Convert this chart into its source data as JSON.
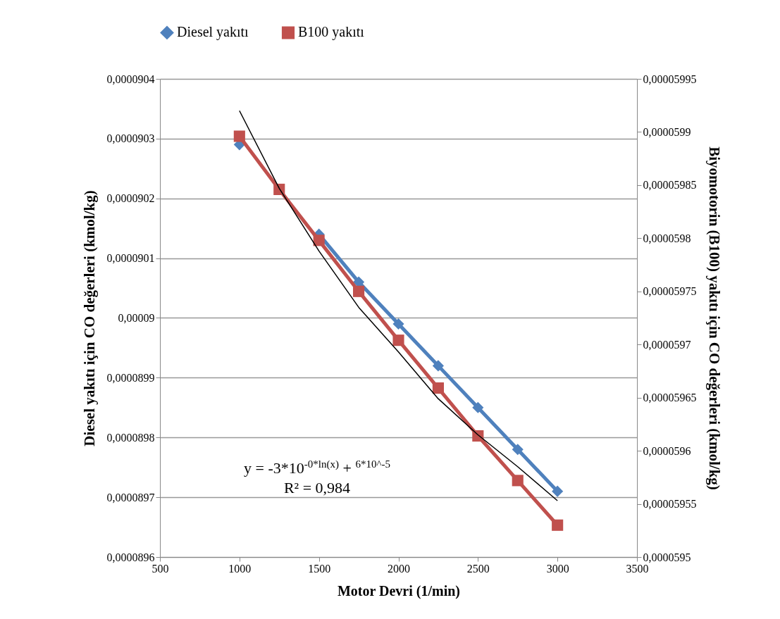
{
  "chart_data": {
    "type": "line",
    "xlabel": "Motor Devri (1/min)",
    "ylabel": "Diesel yakıtı için CO değerleri (kmol/kg)",
    "y2label": "Biyomotorin (B100) yakıtı için  CO değerleri (kmol/kg)",
    "x": [
      1000,
      1250,
      1500,
      1750,
      2000,
      2250,
      2500,
      2750,
      3000
    ],
    "series": [
      {
        "name": "Diesel yakıtı",
        "color": "#4f81bd",
        "marker": "diamond",
        "values": [
          9.029e-05,
          null,
          9.014e-05,
          9.006e-05,
          8.999e-05,
          8.992e-05,
          8.985e-05,
          8.978e-05,
          8.971e-05
        ]
      },
      {
        "name": "B100 yakıtı",
        "color": "#c0504d",
        "marker": "square",
        "axis": "y2",
        "values": [
          5.9896e-05,
          5.9846e-05,
          5.9798e-05,
          5.975e-05,
          5.9704e-05,
          5.9659e-05,
          5.9614e-05,
          5.9572e-05,
          5.953e-05
        ]
      },
      {
        "type": "line",
        "color": "#000000",
        "marker": "none",
        "axis": "y2",
        "x": [
          1000,
          1250,
          1500,
          1750,
          2000,
          2250,
          2500,
          2750,
          3000
        ],
        "values": [
          5.992e-05,
          5.9847e-05,
          5.9788e-05,
          5.9735e-05,
          5.9693e-05,
          5.9649e-05,
          5.9615e-05,
          5.9585e-05,
          5.9553e-05
        ]
      }
    ],
    "xlim": [
      500,
      3500
    ],
    "xticks": [
      500,
      1000,
      1500,
      2000,
      2500,
      3000,
      3500
    ],
    "ylim": [
      8.96e-05,
      9.04e-05
    ],
    "yticks": [
      {
        "value": 8.96e-05,
        "label": "0,0000896"
      },
      {
        "value": 8.97e-05,
        "label": "0,0000897"
      },
      {
        "value": 8.98e-05,
        "label": "0,0000898"
      },
      {
        "value": 8.99e-05,
        "label": "0,0000899"
      },
      {
        "value": 9e-05,
        "label": "0,00009"
      },
      {
        "value": 9.01e-05,
        "label": "0,0000901"
      },
      {
        "value": 9.02e-05,
        "label": "0,0000902"
      },
      {
        "value": 9.03e-05,
        "label": "0,0000903"
      },
      {
        "value": 9.04e-05,
        "label": "0,0000904"
      }
    ],
    "y2lim": [
      5.95e-05,
      5.995e-05
    ],
    "y2ticks": [
      {
        "value": 5.95e-05,
        "label": "0,0000595"
      },
      {
        "value": 5.955e-05,
        "label": "0,00005955"
      },
      {
        "value": 5.96e-05,
        "label": "0,0000596"
      },
      {
        "value": 5.965e-05,
        "label": "0,00005965"
      },
      {
        "value": 5.97e-05,
        "label": "0,0000597"
      },
      {
        "value": 5.975e-05,
        "label": "0,00005975"
      },
      {
        "value": 5.98e-05,
        "label": "0,0000598"
      },
      {
        "value": 5.985e-05,
        "label": "0,00005985"
      },
      {
        "value": 5.99e-05,
        "label": "0,0000599"
      },
      {
        "value": 5.995e-05,
        "label": "0,00005995"
      }
    ],
    "annotations": [
      "y = -3*10$^{-0*ln(x)}$ + $^{6*10^-5}$",
      "R² = 0,984"
    ],
    "grid": "y",
    "legend": "top",
    "line_style": "solid"
  }
}
